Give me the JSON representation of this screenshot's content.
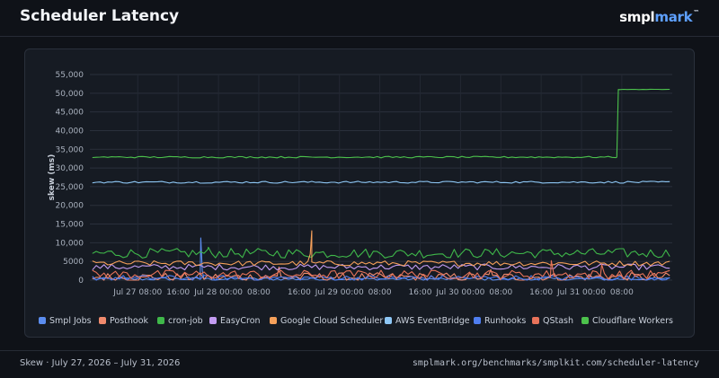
{
  "header": {
    "title": "Scheduler Latency",
    "brand_part1": "smpl",
    "brand_part2": "mark",
    "brand_tm": "™"
  },
  "footer": {
    "range": "Skew · July 27, 2026 – July 31, 2026",
    "url": "smplmark.org/benchmarks/smplkit.com/scheduler-latency"
  },
  "chart_data": {
    "type": "line",
    "title": "",
    "ylabel": "skew (ms)",
    "xlabel": "",
    "ylim": [
      0,
      55000
    ],
    "yticks": [
      "0",
      "5000",
      "10,000",
      "15,000",
      "20,000",
      "25,000",
      "30,000",
      "35,000",
      "40,000",
      "45,000",
      "50,000",
      "55,000"
    ],
    "yticks_values": [
      0,
      5000,
      10000,
      15000,
      20000,
      25000,
      30000,
      35000,
      40000,
      45000,
      50000,
      55000
    ],
    "x_hours_range": [
      -1.5,
      114
    ],
    "xticks": [
      {
        "label": "Jul 27 08:00",
        "h": 8
      },
      {
        "label": "16:00",
        "h": 16
      },
      {
        "label": "Jul 28 00:00",
        "h": 24
      },
      {
        "label": "08:00",
        "h": 32
      },
      {
        "label": "16:00",
        "h": 40
      },
      {
        "label": "Jul 29 00:00",
        "h": 48
      },
      {
        "label": "08:00",
        "h": 56
      },
      {
        "label": "16:00",
        "h": 64
      },
      {
        "label": "Jul 30 00:00",
        "h": 72
      },
      {
        "label": "08:00",
        "h": 80
      },
      {
        "label": "16:00",
        "h": 88
      },
      {
        "label": "Jul 31 00:00",
        "h": 96
      },
      {
        "label": "08:00",
        "h": 104
      }
    ],
    "grid": true,
    "legend_position": "bottom",
    "series": [
      {
        "name": "Smpl Jobs",
        "color": "#5b8def",
        "base": 300,
        "noise": 400,
        "spikes": [
          {
            "h": 20.5,
            "v": 11300
          },
          {
            "h": 20.8,
            "v": 2500
          }
        ]
      },
      {
        "name": "Posthook",
        "color": "#f08a6d",
        "base": 800,
        "noise": 1200,
        "spikes": [
          {
            "h": 36,
            "v": 3500
          },
          {
            "h": 78,
            "v": 2800
          }
        ]
      },
      {
        "name": "cron-job",
        "color": "#3fb84a",
        "base": 7200,
        "noise": 1300,
        "spikes": [
          {
            "h": 22,
            "v": 8800
          }
        ]
      },
      {
        "name": "EasyCron",
        "color": "#c39cf2",
        "base": 3500,
        "noise": 800,
        "spikes": []
      },
      {
        "name": "Google Cloud Scheduler",
        "color": "#f5a05a",
        "base": 4500,
        "noise": 700,
        "spikes": [
          {
            "h": 42.5,
            "v": 13200
          },
          {
            "h": 42.2,
            "v": 7000
          }
        ]
      },
      {
        "name": "AWS EventBridge",
        "color": "#8ec7f5",
        "base": 26200,
        "noise": 250,
        "spikes": []
      },
      {
        "name": "Runhooks",
        "color": "#4f7ef0",
        "base": 600,
        "noise": 700,
        "spikes": []
      },
      {
        "name": "QStash",
        "color": "#e8735a",
        "base": 1500,
        "noise": 1200,
        "spikes": [
          {
            "h": 90,
            "v": 5200
          },
          {
            "h": 100,
            "v": 4200
          }
        ]
      },
      {
        "name": "Cloudflare Workers",
        "color": "#4cc24c",
        "base": 32900,
        "noise": 200,
        "spikes": [],
        "step": {
          "h": 103,
          "v": 51000
        }
      }
    ]
  }
}
